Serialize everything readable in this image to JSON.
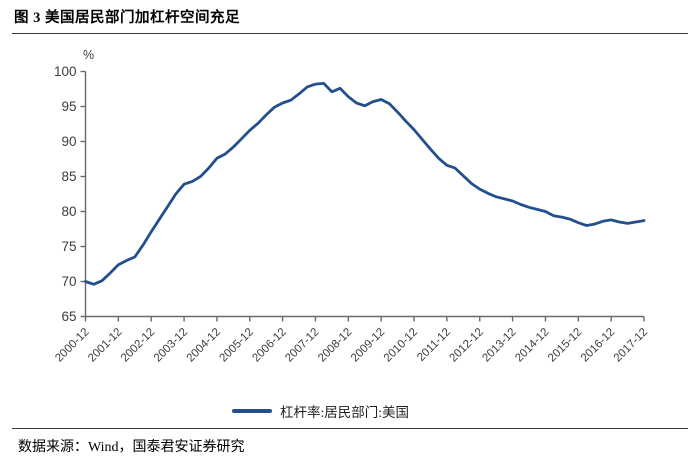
{
  "figure": {
    "title": "图 3 美国居民部门加杠杆空间充足",
    "source": "数据来源：Wind，国泰君安证券研究"
  },
  "colors": {
    "line": "#234f8d",
    "axis": "#6a6a6a",
    "tick_label": "#3d3d3d",
    "rule": "#3a3a3a"
  },
  "chart_data": {
    "type": "line",
    "title": "",
    "xlabel": "",
    "ylabel": "%",
    "ylim": [
      65,
      100
    ],
    "yticks": [
      65,
      70,
      75,
      80,
      85,
      90,
      95,
      100
    ],
    "grid": false,
    "legend_position": "bottom",
    "x_tick_labels": [
      "2000-12",
      "2001-12",
      "2002-12",
      "2003-12",
      "2004-12",
      "2005-12",
      "2006-12",
      "2007-12",
      "2008-12",
      "2009-12",
      "2010-12",
      "2011-12",
      "2012-12",
      "2013-12",
      "2014-12",
      "2015-12",
      "2016-12",
      "2017-12"
    ],
    "points_per_tick": 4,
    "frequency": "quarterly",
    "legend": [
      {
        "name": "杠杆率:居民部门:美国",
        "color": "#234f8d"
      }
    ],
    "series": [
      {
        "name": "杠杆率:居民部门:美国",
        "values": [
          70.0,
          69.6,
          70.1,
          71.2,
          72.4,
          73.0,
          73.5,
          75.2,
          77.1,
          78.9,
          80.7,
          82.5,
          83.9,
          84.3,
          85.0,
          86.2,
          87.6,
          88.2,
          89.2,
          90.4,
          91.6,
          92.6,
          93.8,
          94.9,
          95.5,
          95.9,
          96.8,
          97.8,
          98.2,
          98.3,
          97.1,
          97.6,
          96.4,
          95.5,
          95.1,
          95.7,
          96.0,
          95.4,
          94.2,
          92.9,
          91.7,
          90.3,
          88.9,
          87.6,
          86.6,
          86.2,
          85.1,
          84.0,
          83.2,
          82.6,
          82.1,
          81.8,
          81.5,
          81.0,
          80.6,
          80.3,
          80.0,
          79.4,
          79.2,
          78.9,
          78.4,
          78.0,
          78.2,
          78.6,
          78.8,
          78.5,
          78.3,
          78.5,
          78.7
        ]
      }
    ]
  }
}
